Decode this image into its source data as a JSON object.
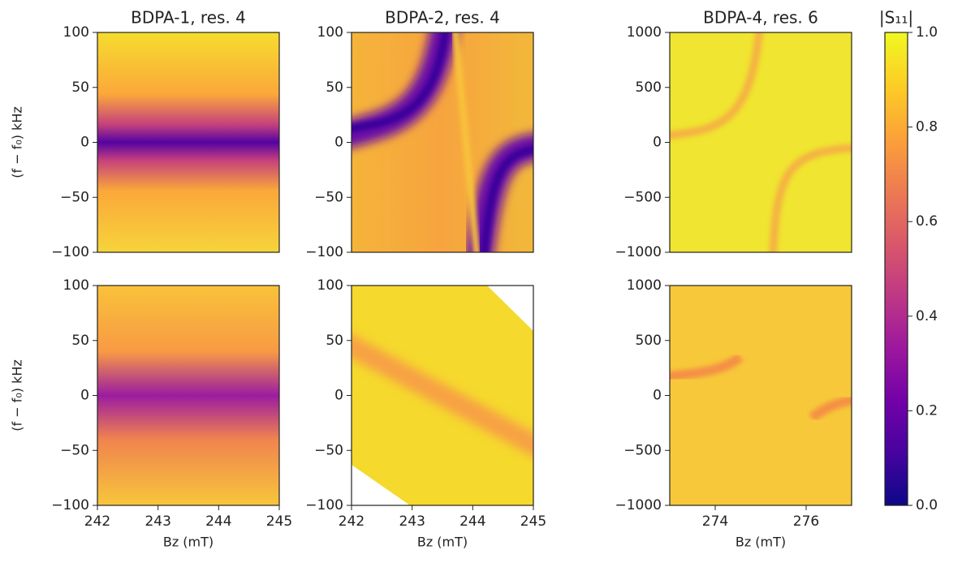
{
  "chart_data": [
    {
      "type": "heatmap",
      "title": "BDPA-1, res. 4",
      "ylabel": "(f − f₀) kHz",
      "xlim": [
        242,
        245
      ],
      "ylim": [
        -100,
        100
      ],
      "yticks": [
        {
          "value": -100,
          "label": "−100"
        },
        {
          "value": -50,
          "label": "−50"
        },
        0,
        50,
        100
      ]
    },
    {
      "type": "heatmap",
      "title": "BDPA-2, res. 4",
      "xlim": [
        242,
        245
      ],
      "ylim": [
        -100,
        100
      ],
      "yticks": [
        {
          "value": -100,
          "label": "−100"
        },
        {
          "value": -50,
          "label": "−50"
        },
        0,
        50,
        100
      ]
    },
    {
      "type": "heatmap",
      "title": "BDPA-4, res. 6",
      "xlim": [
        273,
        277
      ],
      "ylim": [
        -1000,
        1000
      ],
      "yticks": [
        {
          "value": -1000,
          "label": "−1000"
        },
        {
          "value": -500,
          "label": "−500"
        },
        0,
        500,
        1000
      ]
    },
    {
      "type": "heatmap",
      "ylabel": "(f − f₀) kHz",
      "xlabel": "Bz (mT)",
      "xlim": [
        242,
        245
      ],
      "ylim": [
        -100,
        100
      ],
      "xticks": [
        242,
        243,
        244,
        245
      ],
      "yticks": [
        {
          "value": -100,
          "label": "−100"
        },
        {
          "value": -50,
          "label": "−50"
        },
        0,
        50,
        100
      ]
    },
    {
      "type": "heatmap",
      "xlabel": "Bz (mT)",
      "xlim": [
        242,
        245
      ],
      "ylim": [
        -100,
        100
      ],
      "xticks": [
        242,
        243,
        244,
        245
      ],
      "yticks": [
        {
          "value": -100,
          "label": "−100"
        },
        {
          "value": -50,
          "label": "−50"
        },
        0,
        50,
        100
      ]
    },
    {
      "type": "heatmap",
      "xlabel": "Bz (mT)",
      "xlim": [
        273,
        277
      ],
      "ylim": [
        -1000,
        1000
      ],
      "xticks": [
        274,
        276
      ],
      "yticks": [
        {
          "value": -1000,
          "label": "−1000"
        },
        {
          "value": -500,
          "label": "−500"
        },
        0,
        500,
        1000
      ]
    },
    {
      "type": "colorbar",
      "title": "|S₁₁|",
      "ylim": [
        0,
        1
      ],
      "yticks": [
        {
          "value": 0,
          "label": "0.0"
        },
        0.2,
        0.4,
        0.6,
        0.8,
        {
          "value": 1,
          "label": "1.0"
        }
      ]
    }
  ]
}
